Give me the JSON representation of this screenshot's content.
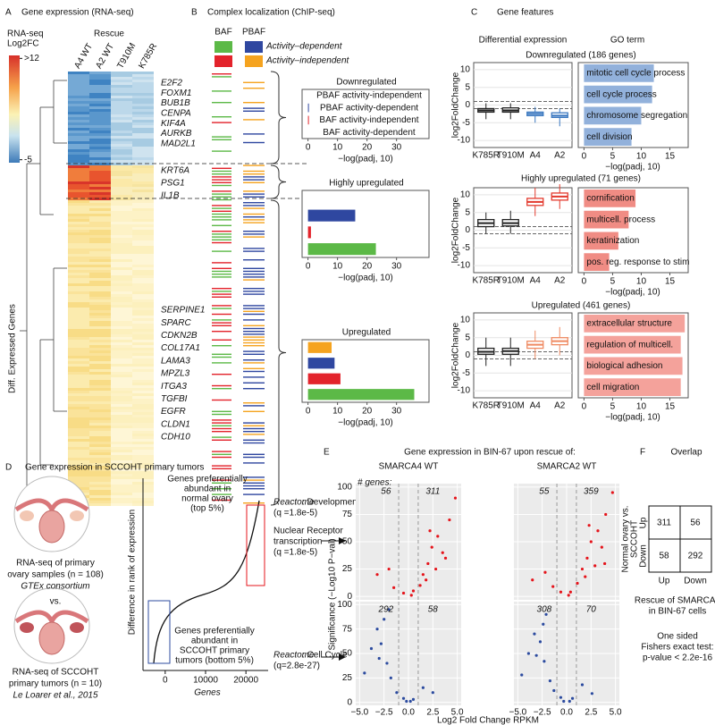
{
  "panelA": {
    "letter": "A",
    "title": "Gene expression (RNA-seq)",
    "rescue": "Rescue",
    "columns": [
      "A4 WT",
      "A2 WT",
      "T910M",
      "K785R"
    ],
    "legend_title": [
      "RNA-seq",
      "Log2FC"
    ],
    "clim": [
      -5.5,
      12.5
    ],
    "legend_ticks": [
      {
        "value": 12,
        "label": ">12"
      },
      -5
    ],
    "ylabel": "Diff. Expressed Genes",
    "genes": [
      [
        "E2F2",
        "FOXM1",
        "BUB1B",
        "CENPA",
        "KIF4A",
        "AURKB",
        "MAD2L1"
      ],
      [
        "KRT6A",
        "PSG1",
        "IL1B"
      ],
      [
        "SERPINE1",
        "SPARC",
        "CDKN2B",
        "COL17A1",
        "LAMA3",
        "MPZL3",
        "ITGA3",
        "TGFBI",
        "EGFR",
        "CLDN1",
        "CDH10"
      ]
    ]
  },
  "panelB": {
    "letter": "B",
    "title": "Complex localization (ChIP-seq)",
    "complexes": [
      "BAF",
      "PBAF"
    ],
    "activity": [
      "Activity–dependent",
      "Activity–independent"
    ],
    "categories": [
      "PBAF activity-independent",
      "PBAF activity-dependent",
      "BAF activity-independent",
      "BAF activity-dependent"
    ],
    "colors": [
      "#f5a31f",
      "#2f47a0",
      "#e3232b",
      "#5cb947"
    ],
    "xlabel": "−log(padj, 10)",
    "xlim": [
      -2,
      41
    ],
    "xticks": [
      0,
      10,
      20,
      30
    ],
    "charts": [
      {
        "title": "Downregulated",
        "values": [
          0,
          0.3,
          0.3,
          0
        ]
      },
      {
        "title": "Highly upregulated",
        "values": [
          null,
          16,
          1,
          23
        ]
      },
      {
        "title": "Upregulated",
        "values": [
          8,
          9,
          11,
          36
        ]
      }
    ]
  },
  "panelC": {
    "letter": "C",
    "title": "Gene features",
    "col_titles": [
      "Differential expression",
      "GO term"
    ],
    "ylabel": "log2FoldChange",
    "categories": [
      "K785R",
      "T910M",
      "A4",
      "A2"
    ],
    "ylim": [
      -12,
      12
    ],
    "yticks": [
      10,
      5,
      0,
      -5,
      -10
    ],
    "thresholds": [
      -1,
      1
    ],
    "go_xlim": [
      -1,
      18.2
    ],
    "go_xticks": [
      0,
      5,
      10,
      15
    ],
    "go_xlabel": "−log(padj, 10)",
    "rows": [
      {
        "title": "Downregulated (186 genes)",
        "box_colors": [
          "#222222",
          "#222222",
          "#3b78c0",
          "#3b78c0"
        ],
        "go_color": "#92b1db",
        "boxes": [
          {
            "low": -4,
            "q1": -2,
            "median": -1.5,
            "q3": -1,
            "high": 0.5
          },
          {
            "low": -4,
            "q1": -2,
            "median": -1.5,
            "q3": -0.8,
            "high": 0.5
          },
          {
            "low": -5,
            "q1": -3,
            "median": -2.5,
            "q3": -2,
            "high": -0.5
          },
          {
            "low": -6,
            "q1": -3.5,
            "median": -3,
            "q3": -2.2,
            "high": -1
          }
        ],
        "go_terms": [
          "mitotic cell cycle process",
          "cell cycle process",
          "chromosome segregation",
          "cell division"
        ],
        "go_values": [
          12.2,
          11.9,
          10,
          8.3
        ]
      },
      {
        "title": "Highly upregulated (71 genes)",
        "box_colors": [
          "#222222",
          "#222222",
          "#e33a2e",
          "#e33a2e"
        ],
        "go_color": "#f08c84",
        "boxes": [
          {
            "low": -1,
            "q1": 1,
            "median": 2,
            "q3": 3,
            "high": 5
          },
          {
            "low": -1,
            "q1": 1.2,
            "median": 2,
            "q3": 3,
            "high": 5.5
          },
          {
            "low": 4,
            "q1": 7,
            "median": 8,
            "q3": 9,
            "high": 12
          },
          {
            "low": 6,
            "q1": 8.5,
            "median": 9.5,
            "q3": 10.5,
            "high": 13
          }
        ],
        "go_terms": [
          "cornification",
          "multicell. process",
          "keratinization",
          "pos. reg. response to stim"
        ],
        "go_values": [
          9,
          7.8,
          6,
          4.4
        ]
      },
      {
        "title": "Upregulated (461 genes)",
        "box_colors": [
          "#222222",
          "#222222",
          "#ef8a62",
          "#ef8a62"
        ],
        "go_color": "#f4a29b",
        "boxes": [
          {
            "low": -3,
            "q1": 0.3,
            "median": 1,
            "q3": 2,
            "high": 5
          },
          {
            "low": -3,
            "q1": 0.3,
            "median": 1.2,
            "q3": 2,
            "high": 5
          },
          {
            "low": -1,
            "q1": 2,
            "median": 3,
            "q3": 4,
            "high": 7
          },
          {
            "low": 0,
            "q1": 3,
            "median": 4,
            "q3": 5,
            "high": 8
          }
        ],
        "go_terms": [
          "extracellular structure",
          "regulation of multicell.",
          "biological adhesion",
          "cell migration"
        ],
        "go_values": [
          17.6,
          16.9,
          17.2,
          16.9
        ]
      }
    ]
  },
  "panelD": {
    "letter": "D",
    "title": "Gene expression in SCCOHT primary tumors",
    "normal": [
      "RNA-seq of primary",
      "ovary samples (n = 108)"
    ],
    "normal_source": "GTEx consortium",
    "vs": "vs.",
    "tumor": [
      "RNA-seq of SCCOHT",
      "primary tumors (n = 10)"
    ],
    "tumor_source": "Le Loarer et al., 2015",
    "ylabel": "Difference in rank of expression",
    "xlabel": "Genes",
    "xlim": [
      -5500,
      25500
    ],
    "xticks": [
      0,
      10000,
      20000
    ],
    "top_text": [
      "Genes preferentially",
      "abundant in",
      "normal ovary",
      "(top 5%)"
    ],
    "bottom_text": [
      "Genes preferentially",
      "abundant in",
      "SCCOHT primary",
      "tumors (bottom 5%)"
    ],
    "reactome": "Reactome",
    "top_terms": [
      ": Developmental Bio.",
      "(q =1.8e-5)",
      "Nuclear Receptor",
      "transcription",
      "(q =1.8e-5)"
    ],
    "bottom_terms": [
      ": Cell Cycle",
      "(q=2.8e-27)"
    ]
  },
  "panelE": {
    "letter": "E",
    "title": "Gene expression in BIN-67 upon rescue of:",
    "genes_label": "# genes:",
    "ylabel": "Significance (−Log10 P−val)",
    "xlabel": "Log2 Fold Change RPKM",
    "xlim": [
      -5.4,
      5.4
    ],
    "ylim": [
      -4,
      104
    ],
    "thresholds": [
      -1,
      1
    ],
    "xticks": [
      {
        "value": -5,
        "label": "−5.0"
      },
      {
        "value": -2.5,
        "label": "−2.5"
      },
      {
        "value": 0,
        "label": "0.0"
      },
      {
        "value": 2.5,
        "label": "2.5"
      },
      {
        "value": 5,
        "label": "5.0"
      }
    ],
    "yticks": [
      0,
      25,
      50,
      75,
      100
    ],
    "up_color": "#e5141b",
    "down_color": "#2c4b9f",
    "facets": [
      {
        "title": "SMARCA4 WT",
        "counts_up": [
          56,
          311
        ],
        "counts_down": [
          292,
          58
        ],
        "up": {
          "x": [
            -3.2,
            -2.0,
            -0.5,
            0.5,
            1.2,
            1.5,
            2.0,
            2.4,
            2.8,
            3.0,
            3.5,
            4.2,
            4.8,
            1.8,
            3.8,
            0.3,
            -1.5,
            2.2
          ],
          "y": [
            20,
            25,
            3,
            5,
            10,
            20,
            30,
            45,
            25,
            55,
            40,
            70,
            90,
            15,
            35,
            1,
            8,
            60
          ]
        },
        "down": {
          "x": [
            -4.5,
            -3.8,
            -3.2,
            -2.8,
            -2.2,
            -2.0,
            -1.8,
            -1.2,
            -0.5,
            0.5,
            1.5,
            2.5,
            -3.0,
            -2.5,
            -0.2,
            0.2
          ],
          "y": [
            30,
            55,
            75,
            60,
            40,
            95,
            25,
            10,
            4,
            3,
            15,
            10,
            45,
            85,
            1,
            1
          ]
        }
      },
      {
        "title": "SMARCA2 WT",
        "counts_up": [
          55,
          359
        ],
        "counts_down": [
          308,
          70
        ],
        "up": {
          "x": [
            -3.5,
            -2.2,
            -0.6,
            0.4,
            1.1,
            1.6,
            2.1,
            2.5,
            2.9,
            3.2,
            3.6,
            4.0,
            4.7,
            1.9,
            3.9,
            0.2,
            -1.4,
            2.3
          ],
          "y": [
            15,
            22,
            4,
            4,
            12,
            25,
            35,
            50,
            28,
            60,
            45,
            75,
            95,
            18,
            30,
            1,
            9,
            65
          ]
        },
        "down": {
          "x": [
            -4.6,
            -3.9,
            -3.3,
            -2.7,
            -2.3,
            -2.1,
            -1.7,
            -1.3,
            -0.6,
            0.6,
            1.6,
            2.6,
            -3.1,
            -2.4,
            -0.3,
            0.3
          ],
          "y": [
            28,
            50,
            70,
            62,
            42,
            90,
            22,
            12,
            5,
            4,
            18,
            9,
            48,
            80,
            1,
            1
          ]
        }
      }
    ]
  },
  "panelF": {
    "letter": "F",
    "title": "Overlap",
    "row_label": [
      "Normal ovary vs.",
      "SCCOHT"
    ],
    "row_dirs": [
      "Up",
      "Down"
    ],
    "col_dirs": [
      "Up",
      "Down"
    ],
    "cells": [
      [
        311,
        56
      ],
      [
        58,
        292
      ]
    ],
    "col_label": [
      "Rescue of SMARCA4",
      "in BIN-67 cells"
    ],
    "test": [
      "One sided",
      "Fishers exact test:",
      "p-value < 2.2e-16"
    ]
  }
}
